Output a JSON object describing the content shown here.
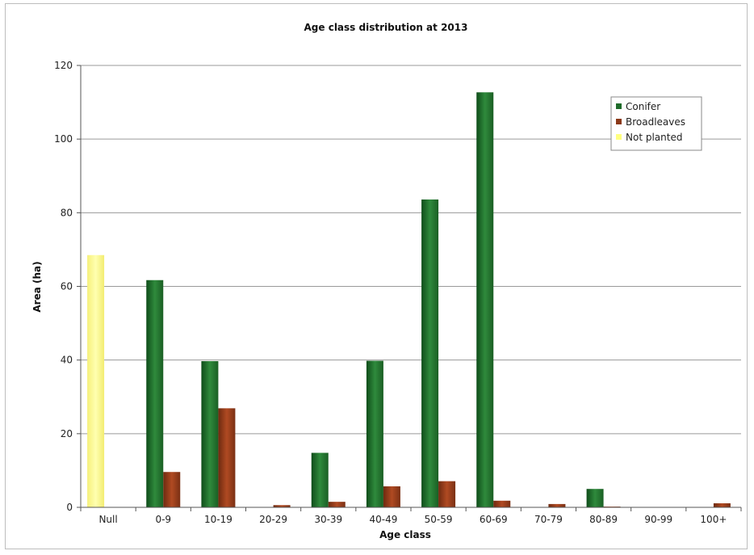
{
  "chart_data": {
    "type": "bar",
    "title": "Age class distribution at 2013",
    "xlabel": "Age class",
    "ylabel": "Area (ha)",
    "ylim": [
      0,
      120
    ],
    "yticks": [
      0,
      20,
      40,
      60,
      80,
      100,
      120
    ],
    "grid": true,
    "legend_position": "top-right",
    "categories": [
      "Null",
      "0-9",
      "10-19",
      "20-29",
      "30-39",
      "40-49",
      "50-59",
      "60-69",
      "70-79",
      "80-89",
      "90-99",
      "100+"
    ],
    "series": [
      {
        "name": "Not planted",
        "color": "#ffff80",
        "values": [
          68.5,
          0,
          0,
          0,
          0,
          0,
          0,
          0,
          0,
          0,
          0,
          0
        ]
      },
      {
        "name": "Conifer",
        "color": "#1e6b2a",
        "values": [
          0,
          61.7,
          39.7,
          0,
          14.8,
          39.8,
          83.6,
          112.7,
          0,
          5.0,
          0,
          0
        ]
      },
      {
        "name": "Broadleaves",
        "color": "#8a3818",
        "values": [
          0,
          9.6,
          26.9,
          0.6,
          1.5,
          5.7,
          7.1,
          1.8,
          0.9,
          0.2,
          0,
          1.1
        ]
      }
    ],
    "legend_order": [
      "Conifer",
      "Broadleaves",
      "Not planted"
    ]
  }
}
